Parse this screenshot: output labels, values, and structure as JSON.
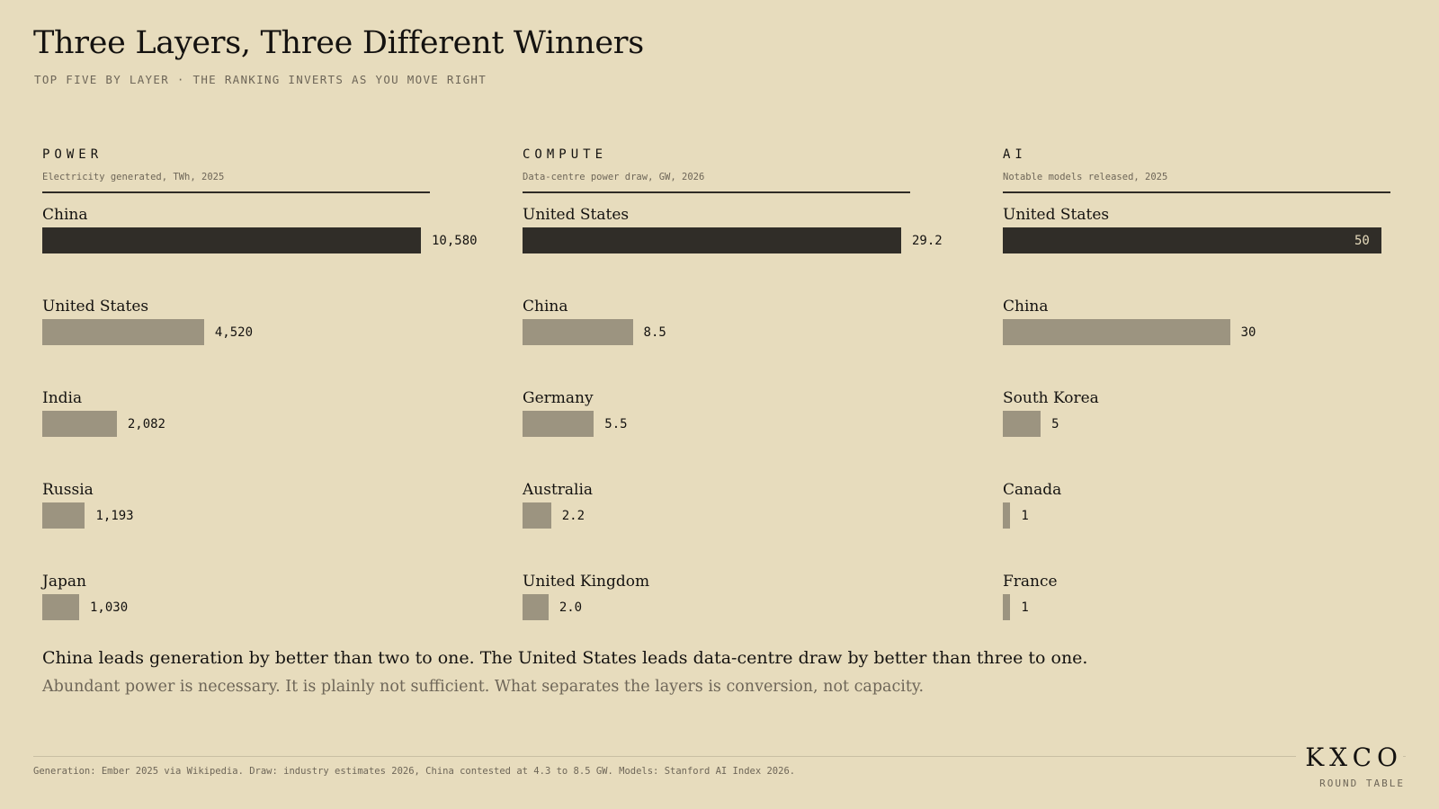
{
  "header": {
    "title": "Three Layers, Three Different Winners",
    "subtitle": "TOP FIVE BY LAYER · THE RANKING INVERTS AS YOU MOVE RIGHT"
  },
  "colors": {
    "leader_bar": "#302d28",
    "other_bar": "#9c9480",
    "background": "#e7dcbd"
  },
  "chart_data": [
    {
      "type": "bar",
      "orientation": "horizontal",
      "title": "POWER",
      "subtitle": "Electricity generated, TWh, 2025",
      "categories": [
        "China",
        "United States",
        "India",
        "Russia",
        "Japan"
      ],
      "values": [
        10580,
        4520,
        2082,
        1193,
        1030
      ],
      "value_labels": [
        "10,580",
        "4,520",
        "2,082",
        "1,193",
        "1,030"
      ],
      "xlim": [
        0,
        10580
      ]
    },
    {
      "type": "bar",
      "orientation": "horizontal",
      "title": "COMPUTE",
      "subtitle": "Data-centre power draw, GW, 2026",
      "categories": [
        "United States",
        "China",
        "Germany",
        "Australia",
        "United Kingdom"
      ],
      "values": [
        29.2,
        8.5,
        5.5,
        2.2,
        2.0
      ],
      "value_labels": [
        "29.2",
        "8.5",
        "5.5",
        "2.2",
        "2.0"
      ],
      "xlim": [
        0,
        29.2
      ]
    },
    {
      "type": "bar",
      "orientation": "horizontal",
      "title": "AI",
      "subtitle": "Notable models released, 2025",
      "categories": [
        "United States",
        "China",
        "South Korea",
        "Canada",
        "France"
      ],
      "values": [
        50,
        30,
        5,
        1,
        1
      ],
      "value_labels": [
        "50",
        "30",
        "5",
        "1",
        "1"
      ],
      "xlim": [
        0,
        50
      ]
    }
  ],
  "takeaway": {
    "headline": "China leads generation by better than two to one. The United States leads data-centre draw by better than three to one.",
    "detail": "Abundant power is necessary. It is plainly not sufficient. What separates the layers is conversion, not capacity."
  },
  "footer": {
    "source": "Generation: Ember 2025 via Wikipedia. Draw: industry estimates 2026, China contested at 4.3 to 8.5 GW. Models: Stanford AI Index 2026.",
    "brand": "KXCO",
    "brand_sub": "ROUND TABLE"
  }
}
